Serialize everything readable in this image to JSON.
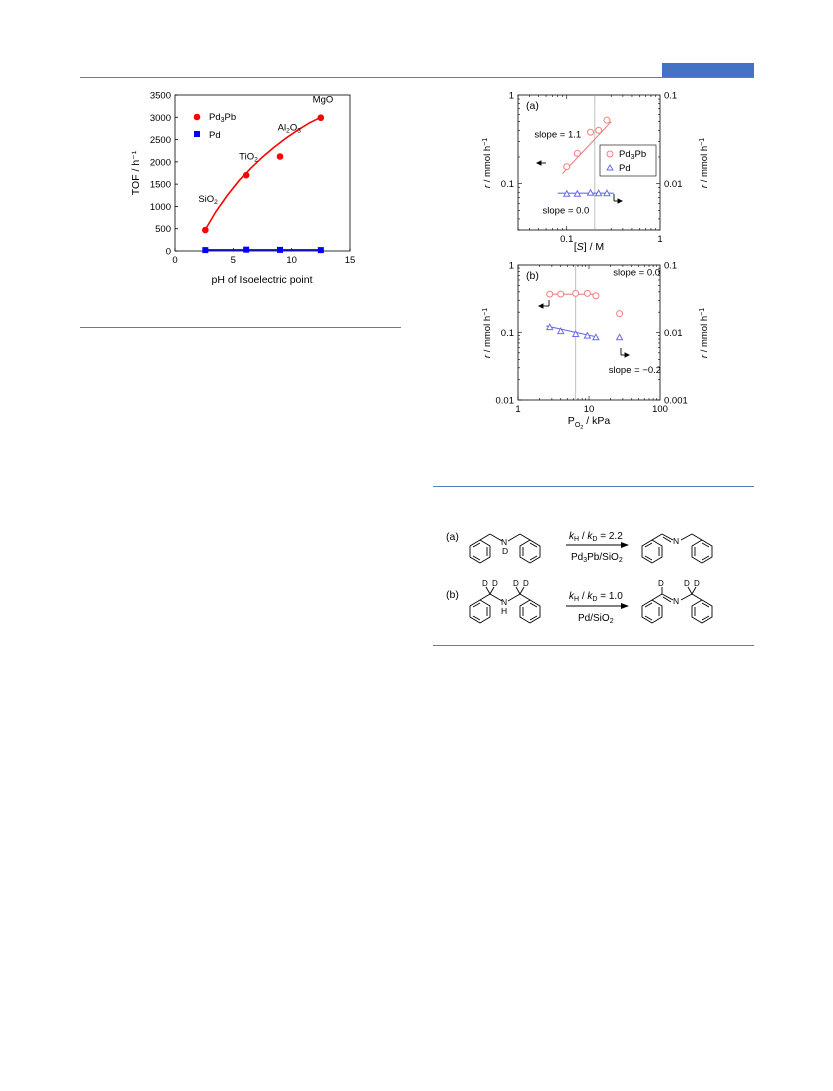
{
  "theme": {
    "rule_color": "#4f81bd",
    "header_box_color": "#4472c4",
    "pd3pb_color": "#ff0000",
    "pd_color": "#0000ff",
    "pd3pb_rate_color": "#f08080",
    "pd_rate_color": "#6b6bf0"
  },
  "chart_data": [
    {
      "id": "tof-vs-pH",
      "type": "scatter",
      "xlabel": "pH of Isoelectric point",
      "ylabel": "TOF / h⁻¹",
      "xlim": [
        0,
        15
      ],
      "ylim": [
        0,
        3500
      ],
      "xticks": [
        "0",
        "5",
        "10",
        "15"
      ],
      "yticks": [
        "0",
        "500",
        "1000",
        "1500",
        "2000",
        "2500",
        "3000",
        "3500"
      ],
      "legend": [
        "Pd₃Pb",
        "Pd"
      ],
      "legend_position": "top-left",
      "series": [
        {
          "name": "Pd₃Pb",
          "marker": "circle",
          "color": "#ff0000",
          "points": [
            [
              2.6,
              470
            ],
            [
              6.1,
              1700
            ],
            [
              9.0,
              2120
            ],
            [
              12.5,
              2990
            ]
          ],
          "fit": [
            [
              2.6,
              480
            ],
            [
              3.5,
              880
            ],
            [
              4.5,
              1250
            ],
            [
              5.5,
              1580
            ],
            [
              6.5,
              1860
            ],
            [
              7.5,
              2110
            ],
            [
              8.5,
              2330
            ],
            [
              9.5,
              2530
            ],
            [
              10.5,
              2710
            ],
            [
              11.5,
              2870
            ],
            [
              12.5,
              3000
            ]
          ]
        },
        {
          "name": "Pd",
          "marker": "square",
          "color": "#0000ff",
          "points": [
            [
              2.6,
              20
            ],
            [
              6.1,
              30
            ],
            [
              9.0,
              25
            ],
            [
              12.5,
              20
            ]
          ]
        }
      ],
      "annotations": [
        {
          "text": "SiO₂",
          "x": 2.0,
          "y": 1100
        },
        {
          "text": "TiO₂",
          "x": 5.5,
          "y": 2050
        },
        {
          "text": "Al₂O₃",
          "x": 8.8,
          "y": 2700
        },
        {
          "text": "MgO",
          "x": 11.8,
          "y": 3330
        }
      ]
    },
    {
      "id": "rate-vs-conc",
      "panel": "(a)",
      "type": "scatter",
      "xlabel": "[S] / M",
      "ylabel_left": "r / mmol h⁻¹",
      "ylabel_right": "r / mmol h⁻¹",
      "x_scale": "log",
      "y_scale": "log",
      "xlim": [
        0.03,
        1
      ],
      "ylim_left": [
        0.03,
        1
      ],
      "ylim_right": [
        0.003,
        0.1
      ],
      "xticks": [
        "0.1",
        "1"
      ],
      "yticks_left": [
        "0.1",
        "1"
      ],
      "yticks_right": [
        "0.01",
        "0.1"
      ],
      "vline_x": 0.2,
      "legend": [
        "Pd₃Pb",
        "Pd"
      ],
      "series": [
        {
          "name": "Pd₃Pb",
          "marker": "circle-open",
          "axis": "left",
          "color": "#f08080",
          "points": [
            [
              0.1,
              0.155
            ],
            [
              0.13,
              0.22
            ],
            [
              0.18,
              0.38
            ],
            [
              0.22,
              0.4
            ],
            [
              0.27,
              0.52
            ]
          ],
          "fit": [
            [
              0.09,
              0.13
            ],
            [
              0.3,
              0.5
            ]
          ]
        },
        {
          "name": "Pd",
          "marker": "triangle-open",
          "axis": "right",
          "color": "#6b6bf0",
          "points": [
            [
              0.1,
              0.0077
            ],
            [
              0.13,
              0.0077
            ],
            [
              0.18,
              0.0079
            ],
            [
              0.22,
              0.0078
            ],
            [
              0.27,
              0.0078
            ]
          ],
          "fit": [
            [
              0.08,
              0.0078
            ],
            [
              0.32,
              0.0078
            ]
          ]
        }
      ],
      "annotations": [
        {
          "text": "slope = 1.1",
          "x": 0.045,
          "y": 0.33
        },
        {
          "text": "slope = 0.0",
          "x": 0.055,
          "y": 0.046
        }
      ]
    },
    {
      "id": "rate-vs-pO2",
      "panel": "(b)",
      "type": "scatter",
      "xlabel": "P_O2 / kPa",
      "ylabel_left": "r / mmol h⁻¹",
      "ylabel_right": "r / mmol h⁻¹",
      "x_scale": "log",
      "y_scale": "log",
      "xlim": [
        1,
        100
      ],
      "ylim_left": [
        0.01,
        1
      ],
      "ylim_right": [
        0.001,
        0.1
      ],
      "xticks": [
        "1",
        "10",
        "100"
      ],
      "yticks_left": [
        "0.01",
        "0.1",
        "1"
      ],
      "yticks_right": [
        "0.001",
        "0.01",
        "0.1"
      ],
      "vline_x": 6.5,
      "series": [
        {
          "name": "Pd₃Pb",
          "marker": "circle-open",
          "axis": "left",
          "color": "#f08080",
          "points": [
            [
              2.8,
              0.37
            ],
            [
              4.0,
              0.37
            ],
            [
              6.5,
              0.38
            ],
            [
              9.5,
              0.38
            ],
            [
              12.5,
              0.35
            ],
            [
              27,
              0.19
            ]
          ],
          "fit": [
            [
              2.5,
              0.37
            ],
            [
              13.5,
              0.37
            ]
          ]
        },
        {
          "name": "Pd",
          "marker": "triangle-open",
          "axis": "right",
          "color": "#6b6bf0",
          "points": [
            [
              2.8,
              0.012
            ],
            [
              4.0,
              0.0105
            ],
            [
              6.5,
              0.0095
            ],
            [
              9.5,
              0.009
            ],
            [
              12.5,
              0.0085
            ],
            [
              27,
              0.0085
            ]
          ],
          "fit": [
            [
              2.5,
              0.0125
            ],
            [
              13.5,
              0.0085
            ]
          ]
        }
      ],
      "annotations": [
        {
          "text": "slope = 0.0",
          "x": 22,
          "y": 0.7
        },
        {
          "text": "slope = −0.2",
          "x": 19,
          "y": 0.025
        }
      ]
    }
  ],
  "scheme": {
    "panel_a": {
      "label": "(a)",
      "kie_italic_1": "k",
      "kie_sub_1": "H",
      "kie_mid": " / ",
      "kie_italic_2": "k",
      "kie_sub_2": "D",
      "kie_value": " = 2.2",
      "catalyst_main": "Pd",
      "catalyst_sub_1": "3",
      "catalyst_rest": "Pb/SiO",
      "catalyst_sub_2": "2",
      "atom_n": "N",
      "atom_d": "D"
    },
    "panel_b": {
      "label": "(b)",
      "kie_italic_1": "k",
      "kie_sub_1": "H",
      "kie_mid": " / ",
      "kie_italic_2": "k",
      "kie_sub_2": "D",
      "kie_value": " = 1.0",
      "catalyst_main": "Pd/SiO",
      "catalyst_sub_1": "2",
      "atom_n": "N",
      "atom_h": "H",
      "atom_d": "D"
    }
  }
}
